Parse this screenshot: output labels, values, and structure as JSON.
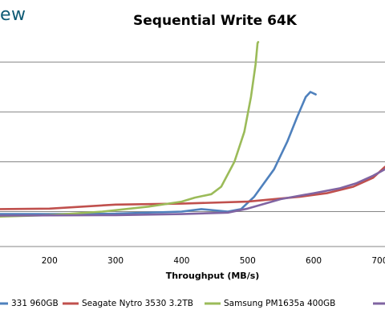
{
  "page": {
    "logo_text": "ew",
    "title": "Sequential Write 64K"
  },
  "chart_data": {
    "type": "line",
    "title": "Sequential Write 64K",
    "xlabel": "Throughput (MB/s)",
    "ylabel": "",
    "xlim": [
      125,
      708
    ],
    "ylim": [
      0.3,
      4.6
    ],
    "x_ticks": [
      200,
      300,
      400,
      500,
      600,
      700
    ],
    "y_gridlines": [
      1,
      2,
      3,
      4
    ],
    "grid": "horizontal",
    "legend_position": "bottom",
    "series": [
      {
        "name": "331 960GB",
        "color": "#4f81bd",
        "points": [
          [
            125,
            0.95
          ],
          [
            200,
            0.95
          ],
          [
            300,
            0.96
          ],
          [
            400,
            1.0
          ],
          [
            430,
            1.05
          ],
          [
            470,
            1.0
          ],
          [
            490,
            1.05
          ],
          [
            510,
            1.3
          ],
          [
            540,
            1.85
          ],
          [
            560,
            2.4
          ],
          [
            575,
            2.9
          ],
          [
            588,
            3.3
          ],
          [
            595,
            3.4
          ],
          [
            603,
            3.35
          ]
        ]
      },
      {
        "name": "Seagate Nytro 3530 3.2TB",
        "color": "#c0504d",
        "points": [
          [
            125,
            1.05
          ],
          [
            200,
            1.06
          ],
          [
            300,
            1.14
          ],
          [
            400,
            1.16
          ],
          [
            500,
            1.2
          ],
          [
            580,
            1.3
          ],
          [
            620,
            1.37
          ],
          [
            660,
            1.5
          ],
          [
            690,
            1.68
          ],
          [
            708,
            1.9
          ]
        ]
      },
      {
        "name": "Samsung PM1635a 400GB",
        "color": "#9bbb59",
        "points": [
          [
            125,
            0.9
          ],
          [
            200,
            0.93
          ],
          [
            280,
            1.0
          ],
          [
            350,
            1.1
          ],
          [
            400,
            1.2
          ],
          [
            420,
            1.28
          ],
          [
            445,
            1.35
          ],
          [
            460,
            1.5
          ],
          [
            480,
            2.0
          ],
          [
            495,
            2.6
          ],
          [
            505,
            3.3
          ],
          [
            512,
            3.95
          ],
          [
            515,
            4.38
          ],
          [
            516,
            4.4
          ]
        ]
      },
      {
        "name": "",
        "color": "#8064a2",
        "points": [
          [
            125,
            0.92
          ],
          [
            300,
            0.93
          ],
          [
            400,
            0.95
          ],
          [
            470,
            0.98
          ],
          [
            500,
            1.06
          ],
          [
            550,
            1.25
          ],
          [
            600,
            1.37
          ],
          [
            640,
            1.47
          ],
          [
            665,
            1.57
          ],
          [
            690,
            1.72
          ],
          [
            708,
            1.85
          ]
        ]
      }
    ]
  }
}
